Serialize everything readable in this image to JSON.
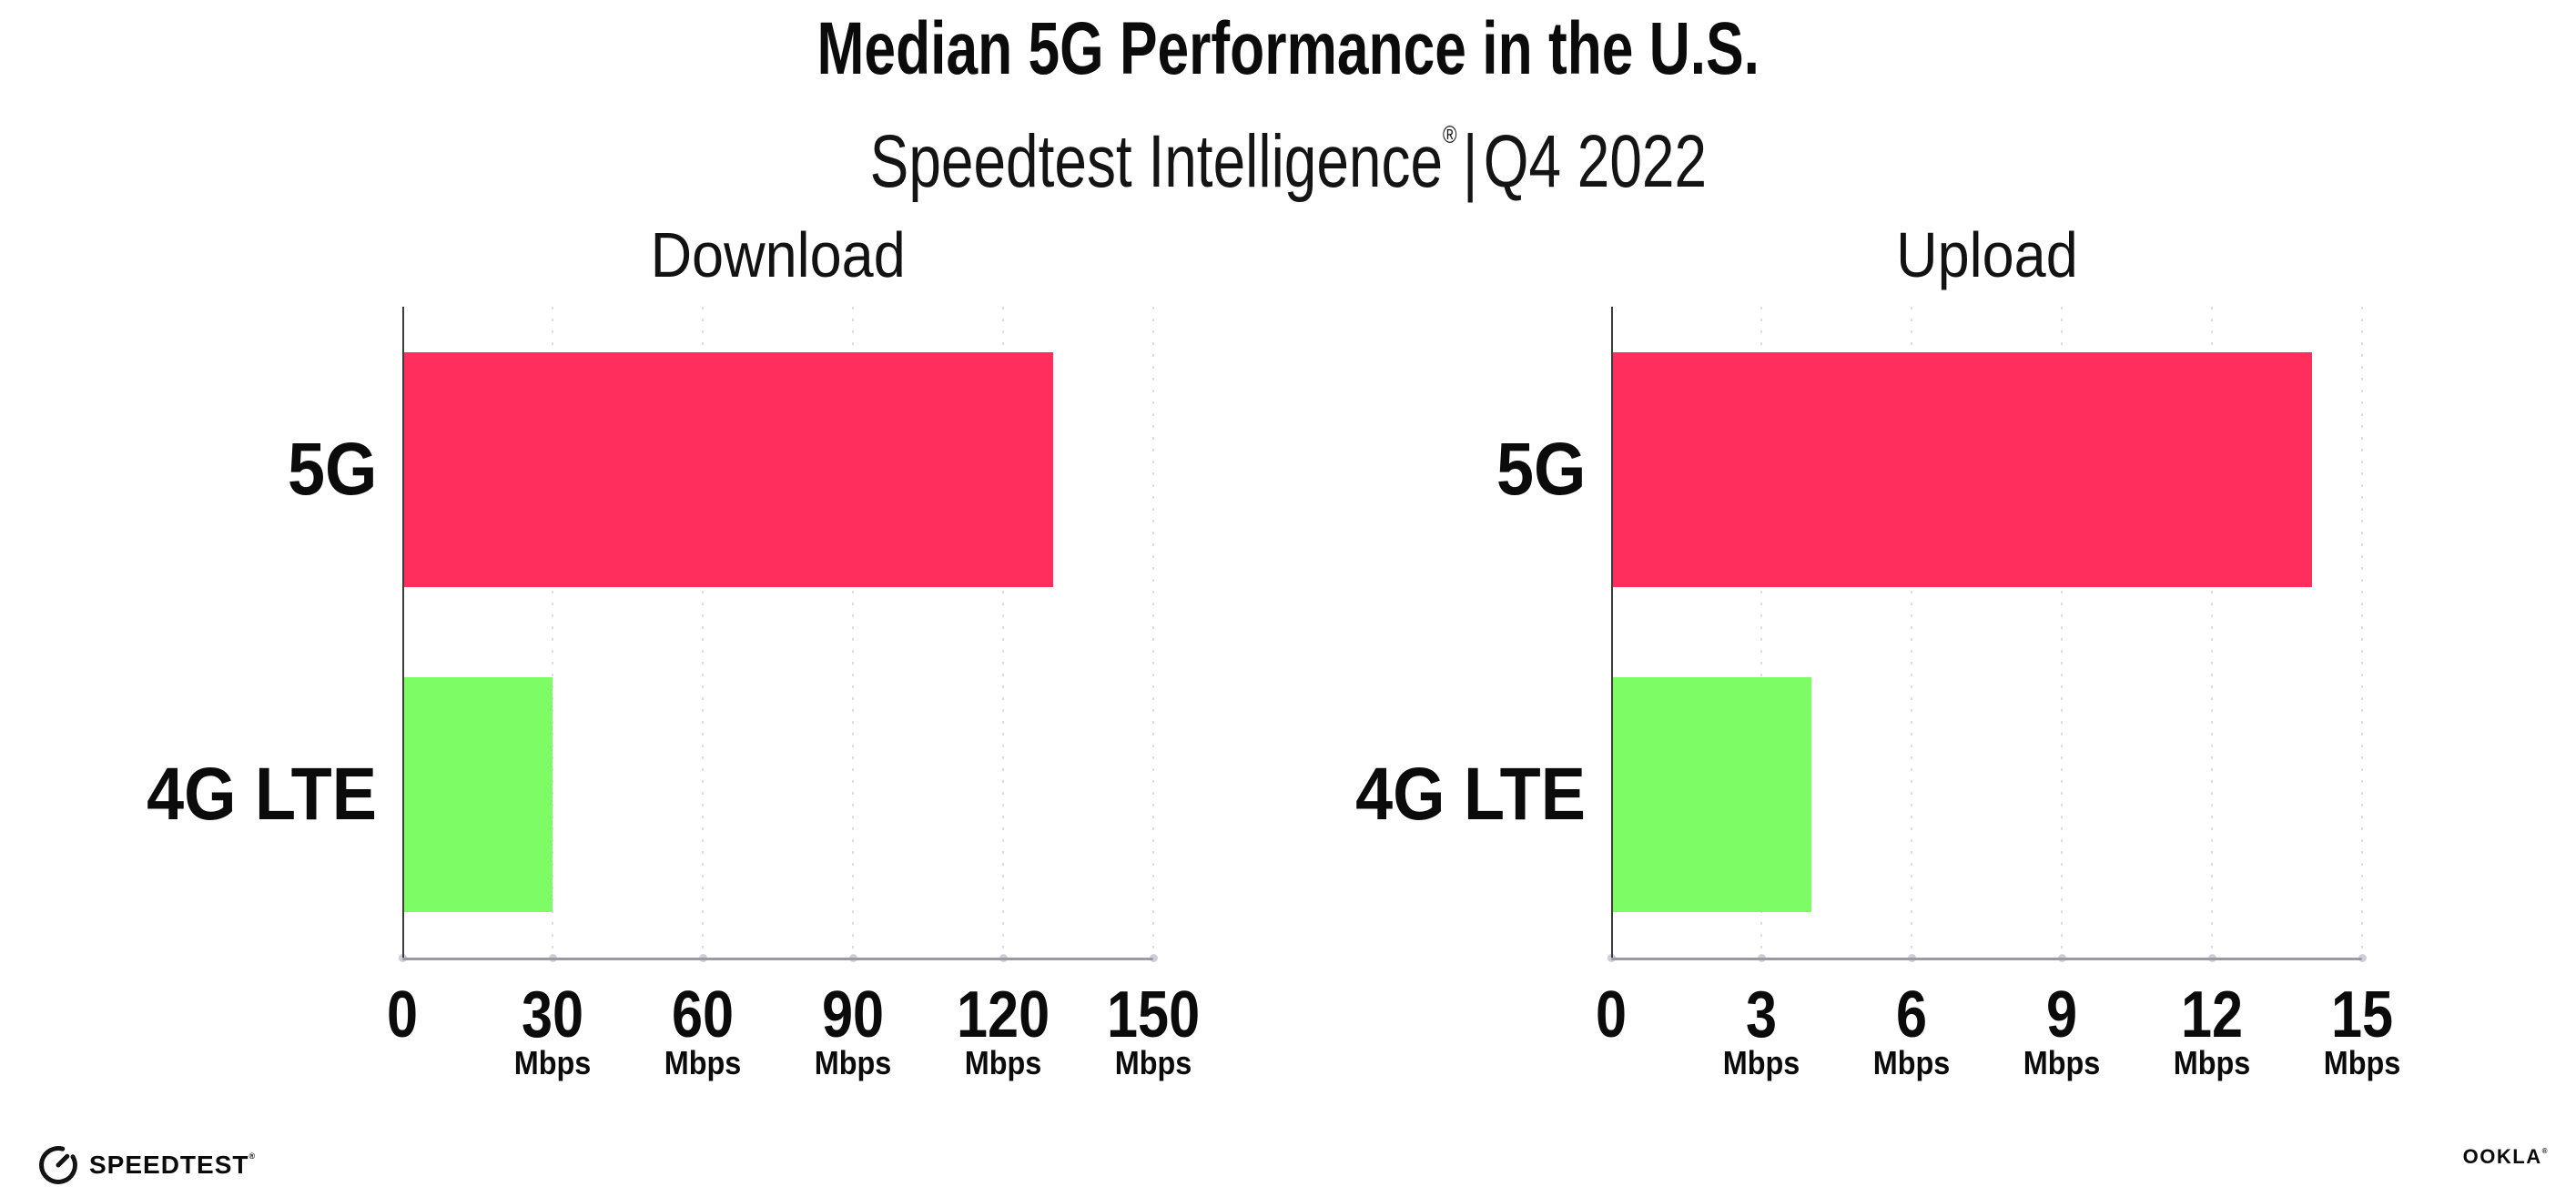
{
  "header": {
    "title": "Median 5G Performance in the U.S.",
    "subtitle_brand": "Speedtest Intelligence",
    "subtitle_reg_mark": "®",
    "subtitle_separator": "|",
    "subtitle_period": "Q4 2022"
  },
  "chart_data": [
    {
      "type": "bar",
      "orientation": "horizontal",
      "title": "Download",
      "categories": [
        "5G",
        "4G LTE"
      ],
      "values": [
        130,
        30
      ],
      "unit": "Mbps",
      "xlabel": "",
      "ylabel": "",
      "xlim": [
        0,
        150
      ],
      "xticks": [
        0,
        30,
        60,
        90,
        120,
        150
      ],
      "bar_colors": [
        "#FF2E5C",
        "#7DFC66"
      ],
      "grid": "dotted-vertical",
      "legend": "none"
    },
    {
      "type": "bar",
      "orientation": "horizontal",
      "title": "Upload",
      "categories": [
        "5G",
        "4G LTE"
      ],
      "values": [
        14,
        4
      ],
      "unit": "Mbps",
      "xlabel": "",
      "ylabel": "",
      "xlim": [
        0,
        15
      ],
      "xticks": [
        0,
        3,
        6,
        9,
        12,
        15
      ],
      "bar_colors": [
        "#FF2E5C",
        "#7DFC66"
      ],
      "grid": "dotted-vertical",
      "legend": "none"
    }
  ],
  "colors": {
    "bar_5g": "#FF2E5C",
    "bar_4g_lte": "#7DFC66",
    "y_axis": "#3c3c3c",
    "x_axis": "#9a9aa0",
    "gridline": "#dddde6",
    "text": "#0b0b0b"
  },
  "footer": {
    "speedtest_icon": "speedtest-gauge-icon",
    "speedtest_label": "SPEEDTEST",
    "speedtest_reg_mark": "®",
    "ookla_label": "OOKLA",
    "ookla_reg_mark": "®"
  }
}
